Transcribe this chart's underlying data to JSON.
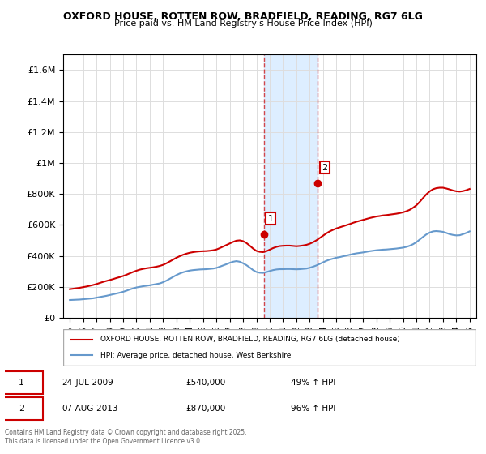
{
  "title": "OXFORD HOUSE, ROTTEN ROW, BRADFIELD, READING, RG7 6LG",
  "subtitle": "Price paid vs. HM Land Registry's House Price Index (HPI)",
  "legend_line1": "OXFORD HOUSE, ROTTEN ROW, BRADFIELD, READING, RG7 6LG (detached house)",
  "legend_line2": "HPI: Average price, detached house, West Berkshire",
  "annotation1_label": "1",
  "annotation1_date": "24-JUL-2009",
  "annotation1_price": "£540,000",
  "annotation1_hpi": "49% ↑ HPI",
  "annotation2_label": "2",
  "annotation2_date": "07-AUG-2013",
  "annotation2_price": "£870,000",
  "annotation2_hpi": "96% ↑ HPI",
  "footnote": "Contains HM Land Registry data © Crown copyright and database right 2025.\nThis data is licensed under the Open Government Licence v3.0.",
  "sale1_x": 2009.56,
  "sale1_y": 540000,
  "sale2_x": 2013.6,
  "sale2_y": 870000,
  "hpi_color": "#6699cc",
  "price_color": "#cc0000",
  "shading_color": "#ddeeff",
  "ylim": [
    0,
    1700000
  ],
  "yticks": [
    0,
    200000,
    400000,
    600000,
    800000,
    1000000,
    1200000,
    1400000,
    1600000
  ],
  "ytick_labels": [
    "£0",
    "£200K",
    "£400K",
    "£600K",
    "£800K",
    "£1M",
    "£1.2M",
    "£1.4M",
    "£1.6M"
  ],
  "xlim": [
    1994.5,
    2025.5
  ],
  "xticks": [
    1995,
    1996,
    1997,
    1998,
    1999,
    2000,
    2001,
    2002,
    2003,
    2004,
    2005,
    2006,
    2007,
    2008,
    2009,
    2010,
    2011,
    2012,
    2013,
    2014,
    2015,
    2016,
    2017,
    2018,
    2019,
    2020,
    2021,
    2022,
    2023,
    2024,
    2025
  ],
  "hpi_x": [
    1995.0,
    1995.25,
    1995.5,
    1995.75,
    1996.0,
    1996.25,
    1996.5,
    1996.75,
    1997.0,
    1997.25,
    1997.5,
    1997.75,
    1998.0,
    1998.25,
    1998.5,
    1998.75,
    1999.0,
    1999.25,
    1999.5,
    1999.75,
    2000.0,
    2000.25,
    2000.5,
    2000.75,
    2001.0,
    2001.25,
    2001.5,
    2001.75,
    2002.0,
    2002.25,
    2002.5,
    2002.75,
    2003.0,
    2003.25,
    2003.5,
    2003.75,
    2004.0,
    2004.25,
    2004.5,
    2004.75,
    2005.0,
    2005.25,
    2005.5,
    2005.75,
    2006.0,
    2006.25,
    2006.5,
    2006.75,
    2007.0,
    2007.25,
    2007.5,
    2007.75,
    2008.0,
    2008.25,
    2008.5,
    2008.75,
    2009.0,
    2009.25,
    2009.5,
    2009.75,
    2010.0,
    2010.25,
    2010.5,
    2010.75,
    2011.0,
    2011.25,
    2011.5,
    2011.75,
    2012.0,
    2012.25,
    2012.5,
    2012.75,
    2013.0,
    2013.25,
    2013.5,
    2013.75,
    2014.0,
    2014.25,
    2014.5,
    2014.75,
    2015.0,
    2015.25,
    2015.5,
    2015.75,
    2016.0,
    2016.25,
    2016.5,
    2016.75,
    2017.0,
    2017.25,
    2017.5,
    2017.75,
    2018.0,
    2018.25,
    2018.5,
    2018.75,
    2019.0,
    2019.25,
    2019.5,
    2019.75,
    2020.0,
    2020.25,
    2020.5,
    2020.75,
    2021.0,
    2021.25,
    2021.5,
    2021.75,
    2022.0,
    2022.25,
    2022.5,
    2022.75,
    2023.0,
    2023.25,
    2023.5,
    2023.75,
    2024.0,
    2024.25,
    2024.5,
    2024.75,
    2025.0
  ],
  "hpi_y": [
    115000,
    116000,
    117000,
    118000,
    120000,
    122000,
    124000,
    126000,
    130000,
    134000,
    138000,
    142000,
    147000,
    152000,
    157000,
    162000,
    168000,
    175000,
    183000,
    190000,
    196000,
    200000,
    204000,
    207000,
    210000,
    214000,
    218000,
    222000,
    230000,
    240000,
    252000,
    264000,
    276000,
    286000,
    294000,
    300000,
    305000,
    308000,
    310000,
    312000,
    313000,
    314000,
    316000,
    318000,
    322000,
    330000,
    338000,
    346000,
    355000,
    362000,
    366000,
    362000,
    352000,
    340000,
    325000,
    308000,
    296000,
    291000,
    290000,
    295000,
    302000,
    308000,
    312000,
    314000,
    314000,
    315000,
    315000,
    314000,
    313000,
    314000,
    316000,
    318000,
    323000,
    330000,
    338000,
    348000,
    358000,
    368000,
    376000,
    382000,
    388000,
    392000,
    397000,
    402000,
    407000,
    412000,
    416000,
    419000,
    422000,
    426000,
    430000,
    433000,
    436000,
    438000,
    440000,
    441000,
    443000,
    445000,
    447000,
    450000,
    453000,
    458000,
    465000,
    475000,
    488000,
    505000,
    522000,
    538000,
    550000,
    558000,
    560000,
    558000,
    555000,
    548000,
    540000,
    535000,
    532000,
    533000,
    540000,
    548000,
    558000
  ],
  "price_x": [
    1995.0,
    1995.25,
    1995.5,
    1995.75,
    1996.0,
    1996.25,
    1996.5,
    1996.75,
    1997.0,
    1997.25,
    1997.5,
    1997.75,
    1998.0,
    1998.25,
    1998.5,
    1998.75,
    1999.0,
    1999.25,
    1999.5,
    1999.75,
    2000.0,
    2000.25,
    2000.5,
    2000.75,
    2001.0,
    2001.25,
    2001.5,
    2001.75,
    2002.0,
    2002.25,
    2002.5,
    2002.75,
    2003.0,
    2003.25,
    2003.5,
    2003.75,
    2004.0,
    2004.25,
    2004.5,
    2004.75,
    2005.0,
    2005.25,
    2005.5,
    2005.75,
    2006.0,
    2006.25,
    2006.5,
    2006.75,
    2007.0,
    2007.25,
    2007.5,
    2007.75,
    2008.0,
    2008.25,
    2008.5,
    2008.75,
    2009.0,
    2009.25,
    2009.5,
    2009.75,
    2010.0,
    2010.25,
    2010.5,
    2010.75,
    2011.0,
    2011.25,
    2011.5,
    2011.75,
    2012.0,
    2012.25,
    2012.5,
    2012.75,
    2013.0,
    2013.25,
    2013.5,
    2013.75,
    2014.0,
    2014.25,
    2014.5,
    2014.75,
    2015.0,
    2015.25,
    2015.5,
    2015.75,
    2016.0,
    2016.25,
    2016.5,
    2016.75,
    2017.0,
    2017.25,
    2017.5,
    2017.75,
    2018.0,
    2018.25,
    2018.5,
    2018.75,
    2019.0,
    2019.25,
    2019.5,
    2019.75,
    2020.0,
    2020.25,
    2020.5,
    2020.75,
    2021.0,
    2021.25,
    2021.5,
    2021.75,
    2022.0,
    2022.25,
    2022.5,
    2022.75,
    2023.0,
    2023.25,
    2023.5,
    2023.75,
    2024.0,
    2024.25,
    2024.5,
    2024.75,
    2025.0
  ],
  "price_y": [
    185000,
    188000,
    191000,
    194000,
    198000,
    202000,
    207000,
    212000,
    218000,
    225000,
    232000,
    238000,
    244000,
    250000,
    257000,
    263000,
    270000,
    278000,
    287000,
    296000,
    304000,
    311000,
    316000,
    320000,
    323000,
    326000,
    330000,
    335000,
    342000,
    352000,
    364000,
    376000,
    388000,
    398000,
    407000,
    414000,
    420000,
    424000,
    427000,
    429000,
    430000,
    431000,
    433000,
    436000,
    441000,
    450000,
    460000,
    470000,
    480000,
    490000,
    498000,
    500000,
    495000,
    483000,
    466000,
    447000,
    432000,
    426000,
    424000,
    430000,
    440000,
    450000,
    458000,
    463000,
    465000,
    466000,
    466000,
    464000,
    462000,
    464000,
    467000,
    471000,
    478000,
    488000,
    500000,
    515000,
    530000,
    545000,
    558000,
    568000,
    577000,
    584000,
    591000,
    598000,
    605000,
    613000,
    620000,
    626000,
    632000,
    638000,
    644000,
    649000,
    654000,
    657000,
    661000,
    663000,
    666000,
    669000,
    672000,
    676000,
    681000,
    688000,
    697000,
    710000,
    726000,
    748000,
    773000,
    797000,
    816000,
    830000,
    837000,
    840000,
    840000,
    835000,
    829000,
    822000,
    817000,
    815000,
    818000,
    824000,
    832000
  ]
}
